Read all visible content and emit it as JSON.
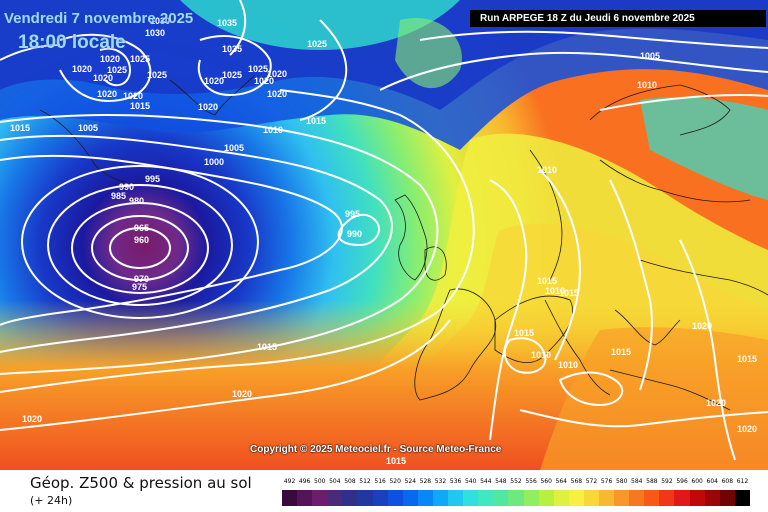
{
  "header": {
    "date_title": "Vendredi 7 novembre 2025",
    "local_time": "18:00 locale",
    "run_info": "Run ARPEGE 18 Z du Jeudi 6 novembre 2025"
  },
  "copyright": "Copyright © 2025 Meteociel.fr - Source Meteo-France",
  "footer": {
    "title": "Géop. Z500 & pression au sol",
    "subtitle": "(+ 24h)"
  },
  "scale": {
    "labels": [
      "492",
      "496",
      "500",
      "504",
      "508",
      "512",
      "516",
      "520",
      "524",
      "528",
      "532",
      "536",
      "540",
      "544",
      "548",
      "552",
      "556",
      "560",
      "564",
      "568",
      "572",
      "576",
      "580",
      "584",
      "588",
      "592",
      "596",
      "600",
      "604",
      "608",
      "612"
    ],
    "colors": [
      "#3a0a3a",
      "#55145a",
      "#6e1d6e",
      "#4a2a7a",
      "#30308a",
      "#2038a0",
      "#1840c0",
      "#1050e0",
      "#0868f0",
      "#0888f8",
      "#10a8f8",
      "#20c8f0",
      "#30e0e0",
      "#40e8c0",
      "#50e8a0",
      "#70e880",
      "#90ee60",
      "#b8f040",
      "#e0f040",
      "#f8f040",
      "#f8d838",
      "#f8b830",
      "#f89828",
      "#f87820",
      "#f85818",
      "#f03818",
      "#e01818",
      "#c00808",
      "#9a0606",
      "#700404",
      "#000000"
    ]
  },
  "isobars": [
    "1030",
    "1035",
    "1035",
    "1030",
    "1020",
    "1025",
    "1020",
    "1020",
    "1025",
    "1025",
    "1020",
    "1020",
    "1025",
    "1025",
    "1020",
    "1015",
    "1020",
    "1020",
    "1020",
    "1020",
    "1005",
    "1015",
    "1010",
    "1000",
    "1005",
    "995",
    "990",
    "985",
    "980",
    "965",
    "960",
    "970",
    "975",
    "995",
    "990",
    "1025",
    "1005",
    "1010",
    "1010",
    "1015",
    "1015",
    "1015",
    "1010",
    "1015",
    "1010",
    "1010",
    "1015",
    "1020",
    "1015",
    "1020",
    "1015",
    "1020",
    "1020",
    "1020",
    "1015"
  ]
}
